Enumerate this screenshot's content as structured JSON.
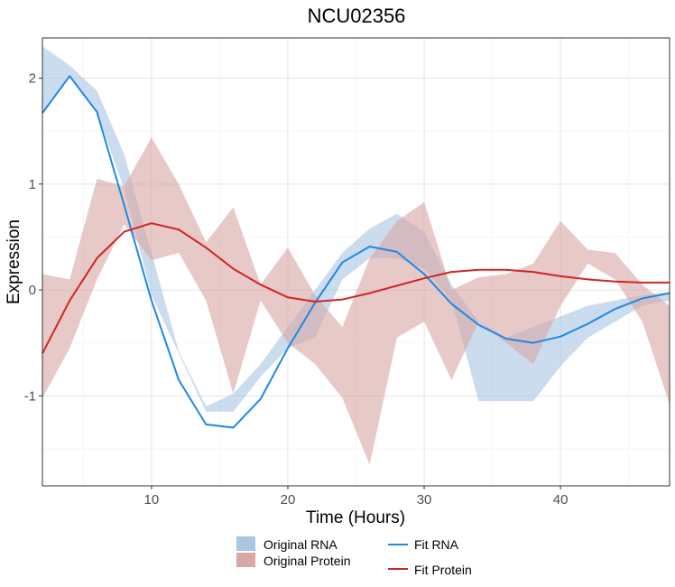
{
  "chart_data": {
    "type": "line",
    "title": "NCU02356",
    "xlabel": "Time (Hours)",
    "ylabel": "Expression",
    "xlim": [
      2,
      48
    ],
    "ylim": [
      -1.85,
      2.38
    ],
    "x_ticks": [
      10,
      20,
      30,
      40
    ],
    "x_tick_labels": [
      "10",
      "20",
      "30",
      "40"
    ],
    "y_ticks": [
      -1,
      0,
      1,
      2
    ],
    "y_tick_labels": [
      "-1",
      "0",
      "1",
      "2"
    ],
    "grid": true,
    "legend_position": "bottom",
    "bands": [
      {
        "name": "Original RNA",
        "color": "#a9c6e2",
        "x": [
          2,
          4,
          6,
          8,
          10,
          12,
          14,
          16,
          18,
          20,
          22,
          24,
          26,
          28,
          30,
          32,
          34,
          36,
          38,
          40,
          42,
          44,
          46,
          48
        ],
        "lower": [
          1.68,
          2.02,
          1.68,
          0.95,
          -0.05,
          -0.6,
          -1.15,
          -1.15,
          -0.82,
          -0.55,
          -0.45,
          0.1,
          0.3,
          0.3,
          0.2,
          -0.1,
          -1.05,
          -1.05,
          -1.05,
          -0.72,
          -0.45,
          -0.3,
          -0.15,
          -0.1
        ],
        "upper": [
          2.3,
          2.12,
          1.88,
          1.28,
          0.35,
          -0.58,
          -1.1,
          -0.98,
          -0.7,
          -0.35,
          0.0,
          0.35,
          0.58,
          0.72,
          0.55,
          0.05,
          -0.3,
          -0.45,
          -0.35,
          -0.25,
          -0.15,
          -0.1,
          -0.05,
          -0.02
        ]
      },
      {
        "name": "Original Protein",
        "color": "#d9a8a6",
        "x": [
          2,
          4,
          6,
          8,
          10,
          12,
          14,
          16,
          18,
          20,
          22,
          24,
          26,
          28,
          30,
          32,
          34,
          36,
          38,
          40,
          42,
          44,
          46,
          48
        ],
        "lower": [
          -1.02,
          -0.55,
          0.1,
          0.62,
          0.28,
          0.35,
          -0.1,
          -0.98,
          -0.1,
          -0.5,
          -0.7,
          -1.02,
          -1.65,
          -0.45,
          -0.3,
          -0.85,
          -0.3,
          -0.5,
          -0.7,
          -0.15,
          0.25,
          0.1,
          -0.3,
          -1.08
        ],
        "upper": [
          0.15,
          0.1,
          1.05,
          0.98,
          1.44,
          1.0,
          0.45,
          0.78,
          0.05,
          0.4,
          -0.05,
          -0.35,
          0.3,
          0.65,
          0.83,
          0.0,
          0.12,
          0.15,
          0.25,
          0.65,
          0.38,
          0.35,
          0.05,
          -0.15
        ]
      }
    ],
    "series": [
      {
        "name": "Fit RNA",
        "color": "#1e88e5",
        "x": [
          2,
          4,
          6,
          8,
          10,
          12,
          14,
          16,
          18,
          20,
          22,
          24,
          26,
          28,
          30,
          32,
          34,
          36,
          38,
          40,
          42,
          44,
          46,
          48
        ],
        "values": [
          1.67,
          2.02,
          1.68,
          0.8,
          -0.1,
          -0.85,
          -1.27,
          -1.3,
          -1.03,
          -0.55,
          -0.12,
          0.26,
          0.41,
          0.36,
          0.15,
          -0.13,
          -0.33,
          -0.46,
          -0.5,
          -0.44,
          -0.32,
          -0.18,
          -0.08,
          -0.03
        ]
      },
      {
        "name": "Fit Protein",
        "color": "#d02525",
        "x": [
          2,
          4,
          6,
          8,
          10,
          12,
          14,
          16,
          18,
          20,
          22,
          24,
          26,
          28,
          30,
          32,
          34,
          36,
          38,
          40,
          42,
          44,
          46,
          48
        ],
        "values": [
          -0.6,
          -0.1,
          0.3,
          0.55,
          0.63,
          0.57,
          0.4,
          0.2,
          0.05,
          -0.07,
          -0.11,
          -0.09,
          -0.03,
          0.04,
          0.11,
          0.17,
          0.19,
          0.19,
          0.17,
          0.13,
          0.1,
          0.08,
          0.07,
          0.07
        ]
      }
    ]
  },
  "legend": {
    "bands": [
      "Original RNA",
      "Original Protein"
    ],
    "lines": [
      "Fit RNA",
      "Fit Protein"
    ]
  }
}
